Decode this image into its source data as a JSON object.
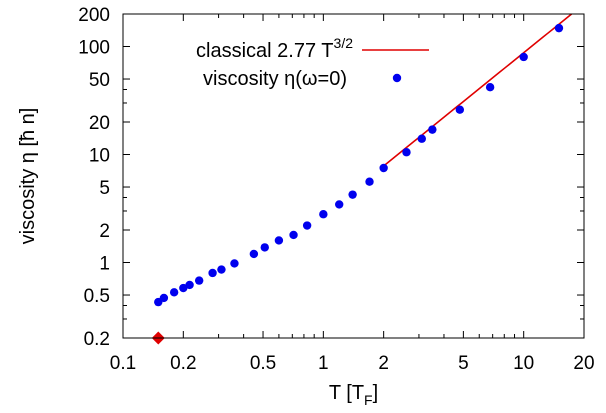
{
  "chart_data": {
    "type": "scatter",
    "title": "",
    "xlabel": "T [T",
    "xlabel_sub": "F",
    "xlabel_close": "]",
    "ylabel": "viscosity η  [ħ n]",
    "xscale": "log",
    "yscale": "log",
    "xlim": [
      0.1,
      20
    ],
    "ylim": [
      0.2,
      200
    ],
    "x_ticks": [
      0.1,
      0.2,
      0.5,
      1,
      2,
      5,
      10,
      20
    ],
    "x_tick_labels": [
      "0.1",
      "0.2",
      "0.5",
      "1",
      "2",
      "5",
      "10",
      "20"
    ],
    "y_ticks": [
      0.2,
      0.5,
      1,
      2,
      5,
      10,
      20,
      50,
      100,
      200
    ],
    "y_tick_labels": [
      "0.2",
      "0.5",
      "1",
      "2",
      "5",
      "10",
      "20",
      "50",
      "100",
      "200"
    ],
    "legend_position": "top-left",
    "series": [
      {
        "name": "classical 2.77 T",
        "name_sup": "3/2",
        "kind": "line",
        "color": "#e00000",
        "coefficient": 2.77,
        "exponent": 1.5,
        "x_range": [
          1.93,
          20
        ]
      },
      {
        "name": "viscosity η(ω=0)",
        "kind": "scatter",
        "color": "#0000ee",
        "x": [
          0.15,
          0.16,
          0.18,
          0.2,
          0.215,
          0.24,
          0.28,
          0.31,
          0.36,
          0.45,
          0.51,
          0.6,
          0.71,
          0.83,
          1.0,
          1.2,
          1.4,
          1.7,
          2.0,
          2.6,
          3.1,
          3.5,
          4.8,
          6.8,
          10.0,
          15.0
        ],
        "y": [
          0.43,
          0.47,
          0.53,
          0.58,
          0.62,
          0.68,
          0.8,
          0.86,
          0.98,
          1.2,
          1.38,
          1.6,
          1.8,
          2.2,
          2.8,
          3.45,
          4.25,
          5.6,
          7.5,
          10.5,
          14.0,
          17.0,
          26.0,
          42.0,
          80.0,
          148.0
        ]
      },
      {
        "name": "",
        "kind": "marker",
        "marker": "diamond",
        "color": "#e00000",
        "x": [
          0.15
        ],
        "y": [
          0.2
        ]
      }
    ]
  }
}
